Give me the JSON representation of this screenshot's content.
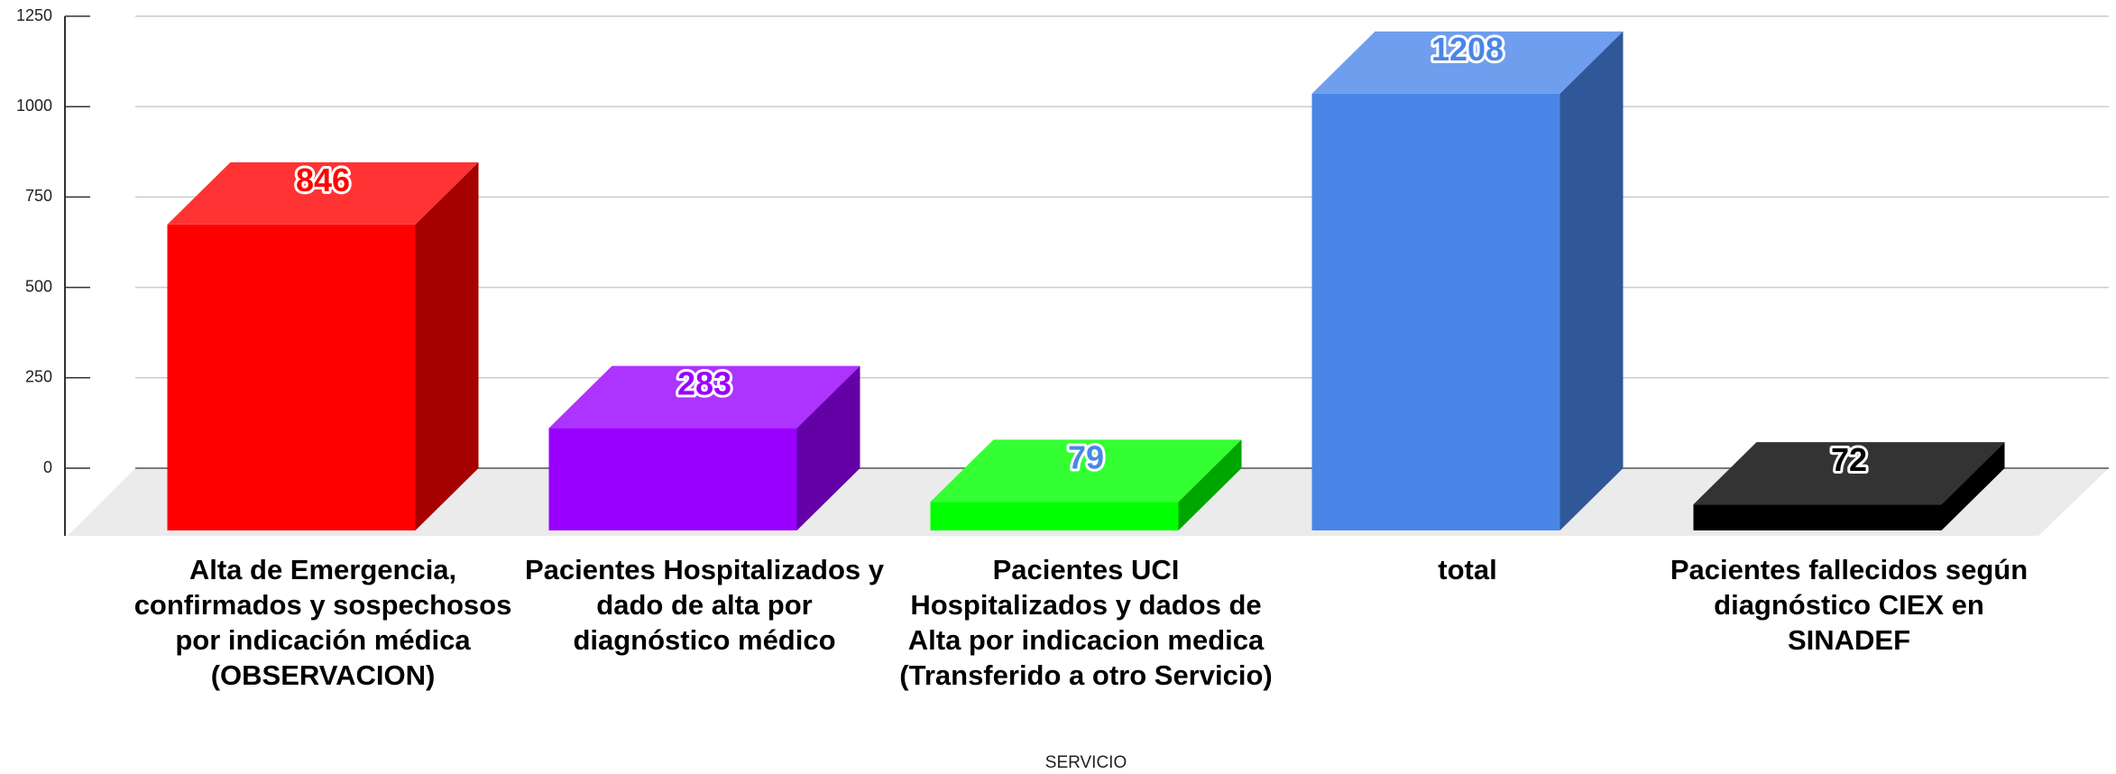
{
  "chart_data": {
    "type": "bar3d",
    "x_label": "SERVICIO",
    "categories": [
      "Alta de Emergencia, confirmados y sospechosos  por indicación médica (OBSERVACION)",
      "Pacientes Hospitalizados y dado de alta por diagnóstico médico",
      "Pacientes UCI Hospitalizados y dados de Alta por indicacion medica (Transferido a otro Servicio)",
      "total",
      "Pacientes fallecidos según diagnóstico CIEX en SINADEF"
    ],
    "values": [
      846,
      283,
      79,
      1208,
      72
    ],
    "colors": [
      "#ff0000",
      "#9900ff",
      "#00ff00",
      "#4a86e8",
      "#000000"
    ],
    "label_colors": [
      "#ff0000",
      "#9900ff",
      "#4a86e8",
      "#4a86e8",
      "#000000"
    ],
    "ylim": [
      0,
      1250
    ],
    "yticks": [
      0,
      250,
      500,
      750,
      1000,
      1250
    ],
    "grid": true
  }
}
